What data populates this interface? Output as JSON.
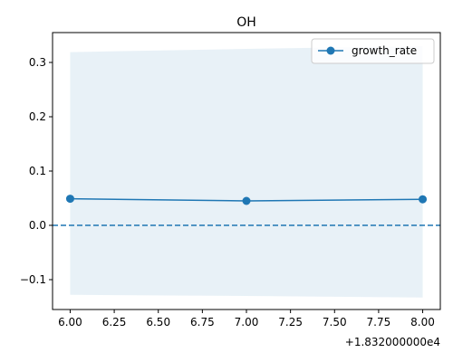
{
  "chart_data": {
    "type": "line",
    "title": "OH",
    "xlabel": "",
    "ylabel": "",
    "x_offset_label": "+1.832000000e4",
    "x_offset": 18320,
    "x": [
      6.0,
      7.0,
      8.0
    ],
    "series": [
      {
        "name": "growth_rate",
        "values": [
          0.049,
          0.045,
          0.048
        ],
        "color": "#1f77b4",
        "marker": "circle"
      }
    ],
    "band": {
      "lower": [
        -0.128,
        -0.13,
        -0.133
      ],
      "upper": [
        0.319,
        0.325,
        0.33
      ],
      "color": "#1f77b4",
      "opacity": 0.1
    },
    "reference_line": {
      "y": 0.0,
      "style": "dashed",
      "color": "#1f77b4"
    },
    "xlim": [
      5.9,
      8.1
    ],
    "ylim": [
      -0.155,
      0.355
    ],
    "xticks": [
      6.0,
      6.25,
      6.5,
      6.75,
      7.0,
      7.25,
      7.5,
      7.75,
      8.0
    ],
    "xtick_labels": [
      "6.00",
      "6.25",
      "6.50",
      "6.75",
      "7.00",
      "7.25",
      "7.50",
      "7.75",
      "8.00"
    ],
    "yticks": [
      -0.1,
      0.0,
      0.1,
      0.2,
      0.3
    ],
    "ytick_labels": [
      "−0.1",
      "0.0",
      "0.1",
      "0.2",
      "0.3"
    ],
    "grid": false,
    "legend_position": "upper right"
  }
}
